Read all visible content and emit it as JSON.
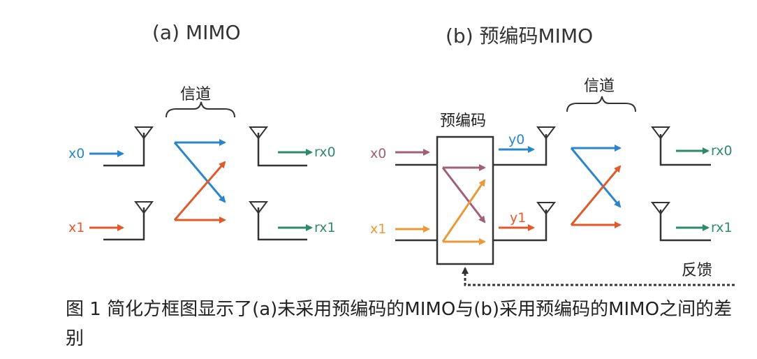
{
  "top_fragment": "…………………………",
  "panel_a": {
    "title": "(a) MIMO",
    "channel_label": "信道",
    "inputs": [
      "x0",
      "x1"
    ],
    "outputs": [
      "rx0",
      "rx1"
    ]
  },
  "panel_b": {
    "title": "(b) 预编码MIMO",
    "precoder_label": "预编码",
    "channel_label": "信道",
    "inputs": [
      "x0",
      "x1"
    ],
    "precoded": [
      "y0",
      "y1"
    ],
    "outputs": [
      "rx0",
      "rx1"
    ],
    "feedback_label": "反馈"
  },
  "caption": "图 1  简化方框图显示了(a)未采用预编码的MIMO与(b)采用预编码的MIMO之间的差别",
  "colors": {
    "blue": "#2b86c9",
    "red": "#e05a2b",
    "green": "#2e8b6a",
    "mauve": "#a0607a",
    "orange": "#e89a3a",
    "line": "#333333"
  }
}
